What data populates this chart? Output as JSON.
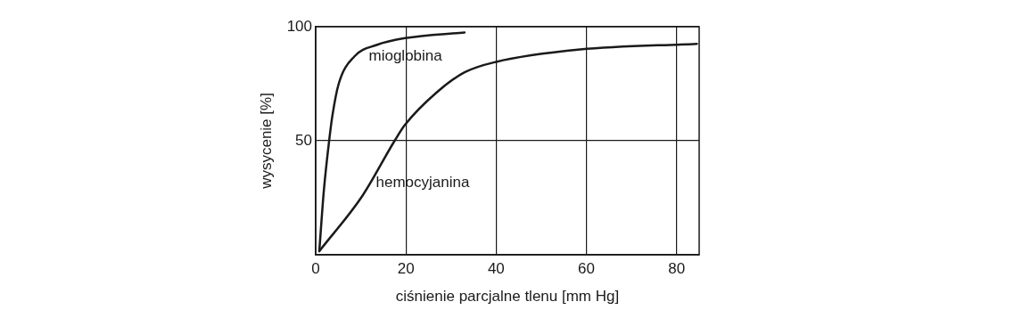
{
  "chart_data": {
    "type": "line",
    "xlabel": "ciśnienie parcjalne tlenu [mm Hg]",
    "ylabel": "wysycenie [%]",
    "xlim": [
      0,
      85
    ],
    "xticks": [
      0,
      20,
      40,
      60,
      80
    ],
    "ylim": [
      0,
      100
    ],
    "yticks": [
      {
        "value": 0,
        "label": null
      },
      50,
      100
    ],
    "grid": true,
    "legend": false,
    "marker": "none",
    "line_style": "solid",
    "series": [
      {
        "name": "mioglobina",
        "color": "#1a1a1a",
        "x": [
          0.8,
          1.8,
          3.1,
          3.7,
          5.1,
          8.6,
          13.5,
          19.8,
          33
        ],
        "values": [
          1.6,
          28,
          52,
          61,
          75,
          87,
          92,
          95,
          97.5
        ]
      },
      {
        "name": "hemocyjanina",
        "color": "#1a1a1a",
        "x": [
          0.8,
          10.4,
          17.5,
          19.8,
          26.7,
          33,
          39.8,
          58.6,
          84.5
        ],
        "values": [
          1.6,
          26,
          50,
          57,
          71,
          80,
          84.5,
          90,
          92.5
        ]
      }
    ]
  }
}
